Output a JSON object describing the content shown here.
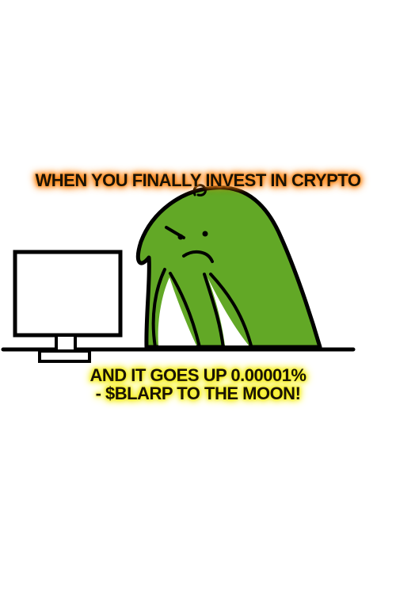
{
  "meme": {
    "top_caption": "WHEN YOU FINALLY INVEST IN CRYPTO",
    "bottom_caption_line1": "AND IT GOES UP 0.00001%",
    "bottom_caption_line2": "- $BLARP TO THE MOON!"
  },
  "colors": {
    "blarp_green": "#62a826",
    "top_glow": "#ff8a1c",
    "bottom_glow": "#f4ee16",
    "outline": "#000000"
  }
}
